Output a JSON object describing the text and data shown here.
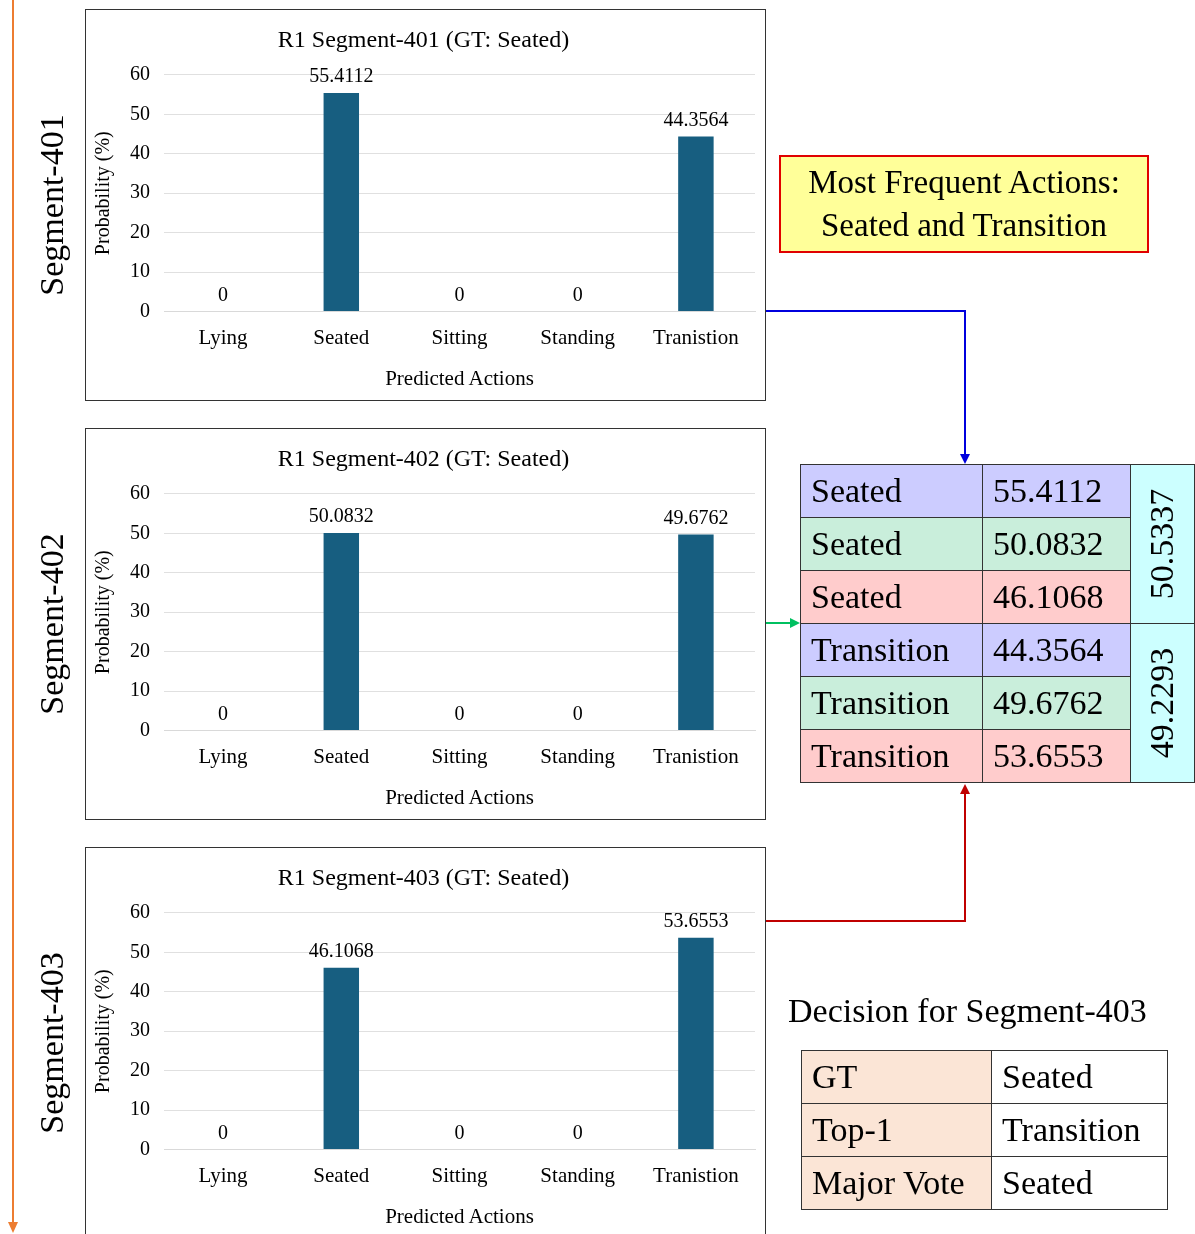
{
  "chart_data": [
    {
      "type": "bar",
      "title": "R1 Segment-401 (GT: Seated)",
      "xlabel": "Predicted Actions",
      "ylabel": "Probability (%)",
      "categories": [
        "Lying",
        "Seated",
        "Sitting",
        "Standing",
        "Tranistion"
      ],
      "values": [
        0,
        55.4112,
        0,
        0,
        44.3564
      ],
      "color": "#175e80",
      "ylim": [
        0,
        60
      ],
      "yticks": [
        0,
        10,
        20,
        30,
        40,
        50,
        60
      ],
      "grid": "y",
      "data_labels": true,
      "legend": false,
      "annotations": [
        "Segment-401"
      ]
    },
    {
      "type": "bar",
      "title": "R1 Segment-402 (GT: Seated)",
      "xlabel": "Predicted Actions",
      "ylabel": "Probability (%)",
      "categories": [
        "Lying",
        "Seated",
        "Sitting",
        "Standing",
        "Tranistion"
      ],
      "values": [
        0,
        50.0832,
        0,
        0,
        49.6762
      ],
      "color": "#175e80",
      "ylim": [
        0,
        60
      ],
      "yticks": [
        0,
        10,
        20,
        30,
        40,
        50,
        60
      ],
      "grid": "y",
      "data_labels": true,
      "legend": false,
      "annotations": [
        "Segment-402"
      ]
    },
    {
      "type": "bar",
      "title": "R1 Segment-403 (GT: Seated)",
      "xlabel": "Predicted Actions",
      "ylabel": "Probability (%)",
      "categories": [
        "Lying",
        "Seated",
        "Sitting",
        "Standing",
        "Tranistion"
      ],
      "values": [
        0,
        46.1068,
        0,
        0,
        53.6553
      ],
      "color": "#175e80",
      "ylim": [
        0,
        60
      ],
      "yticks": [
        0,
        10,
        20,
        30,
        40,
        50,
        60
      ],
      "grid": "y",
      "data_labels": true,
      "legend": false,
      "annotations": [
        "Segment-403"
      ]
    },
    {
      "type": "other",
      "annotations": [
        "Most Frequent Actions: Seated and Transition",
        "Seated",
        "55.4112",
        "Seated",
        "50.0832",
        "Seated",
        "46.1068",
        "Transition",
        "44.3564",
        "Transition",
        "49.6762",
        "Transition",
        "53.6553",
        "50.5337",
        "49.2293",
        "Decision for Segment-403",
        "GT",
        "Seated",
        "Top-1",
        "Transition",
        "Major Vote",
        "Seated"
      ]
    }
  ]
}
